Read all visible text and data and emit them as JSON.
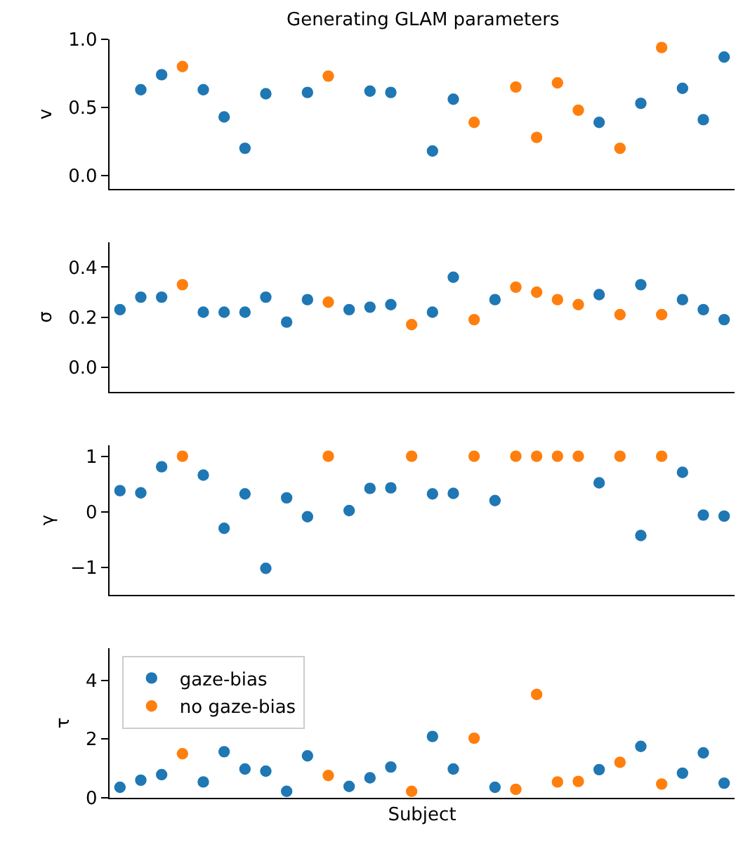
{
  "chart_data": [
    {
      "type": "scatter",
      "title": "Generating GLAM parameters",
      "ylabel": "v",
      "categories": [
        null,
        null,
        null,
        null,
        null,
        null,
        null,
        null,
        null,
        null,
        null,
        null,
        null,
        null,
        null,
        null,
        null,
        null,
        null,
        null,
        null,
        null,
        null,
        null,
        null,
        null,
        null,
        null,
        null,
        null
      ],
      "ylim": [
        -0.1,
        1.0
      ],
      "yticks": [
        {
          "value": 0,
          "label": "0.0"
        },
        {
          "value": 0.5,
          "label": "0.5"
        },
        {
          "value": 1,
          "label": "1.0"
        }
      ],
      "tick_labels": "y",
      "marker": "circle",
      "series": [
        {
          "color": "#1f77b4",
          "values": [
            null,
            0.63,
            0.74,
            null,
            0.63,
            0.43,
            0.2,
            0.6,
            null,
            0.61,
            null,
            null,
            0.62,
            0.61,
            null,
            0.18,
            0.56,
            null,
            null,
            null,
            null,
            null,
            null,
            0.39,
            null,
            0.53,
            null,
            0.64,
            0.41,
            0.87
          ]
        },
        {
          "color": "#ff7f0e",
          "values": [
            null,
            null,
            null,
            0.8,
            null,
            null,
            null,
            null,
            null,
            null,
            0.73,
            null,
            null,
            null,
            null,
            null,
            null,
            0.39,
            null,
            0.65,
            0.28,
            0.68,
            0.48,
            null,
            0.2,
            null,
            0.94,
            null,
            null,
            null
          ]
        }
      ]
    },
    {
      "type": "scatter",
      "ylabel": "σ",
      "categories": [
        null,
        null,
        null,
        null,
        null,
        null,
        null,
        null,
        null,
        null,
        null,
        null,
        null,
        null,
        null,
        null,
        null,
        null,
        null,
        null,
        null,
        null,
        null,
        null,
        null,
        null,
        null,
        null,
        null,
        null
      ],
      "ylim": [
        -0.1,
        0.5
      ],
      "yticks": [
        {
          "value": 0,
          "label": "0.0"
        },
        {
          "value": 0.2,
          "label": "0.2"
        },
        {
          "value": 0.4,
          "label": "0.4"
        }
      ],
      "tick_labels": "y",
      "marker": "circle",
      "series": [
        {
          "color": "#1f77b4",
          "values": [
            0.23,
            0.28,
            0.28,
            null,
            0.22,
            0.22,
            0.22,
            0.28,
            0.18,
            0.27,
            null,
            0.23,
            0.24,
            0.25,
            null,
            0.22,
            0.36,
            null,
            0.27,
            null,
            null,
            null,
            null,
            0.29,
            null,
            0.33,
            null,
            0.27,
            0.23,
            0.19
          ]
        },
        {
          "color": "#ff7f0e",
          "values": [
            null,
            null,
            null,
            0.33,
            null,
            null,
            null,
            null,
            null,
            null,
            0.26,
            null,
            null,
            null,
            0.17,
            null,
            null,
            0.19,
            null,
            0.32,
            0.3,
            0.27,
            0.25,
            null,
            0.21,
            null,
            0.21,
            null,
            null,
            null
          ]
        }
      ]
    },
    {
      "type": "scatter",
      "ylabel": "γ",
      "categories": [
        null,
        null,
        null,
        null,
        null,
        null,
        null,
        null,
        null,
        null,
        null,
        null,
        null,
        null,
        null,
        null,
        null,
        null,
        null,
        null,
        null,
        null,
        null,
        null,
        null,
        null,
        null,
        null,
        null,
        null
      ],
      "ylim": [
        -1.5,
        1.2
      ],
      "yticks": [
        {
          "value": -1,
          "label": "−1"
        },
        0,
        1
      ],
      "tick_labels": "y",
      "marker": "circle",
      "series": [
        {
          "color": "#1f77b4",
          "values": [
            0.38,
            0.34,
            0.81,
            null,
            0.66,
            -0.3,
            0.32,
            -1.02,
            0.25,
            -0.09,
            null,
            0.02,
            0.42,
            0.43,
            null,
            0.32,
            0.33,
            null,
            0.2,
            null,
            null,
            null,
            null,
            0.52,
            null,
            -0.43,
            null,
            0.71,
            -0.06,
            -0.08
          ]
        },
        {
          "color": "#ff7f0e",
          "values": [
            null,
            null,
            null,
            1,
            null,
            null,
            null,
            null,
            null,
            null,
            1,
            null,
            null,
            null,
            1,
            null,
            null,
            1,
            null,
            1,
            1,
            1,
            1,
            null,
            1,
            null,
            1,
            null,
            null,
            null
          ]
        }
      ]
    },
    {
      "type": "scatter",
      "ylabel": "τ",
      "xlabel": "Subject",
      "categories": [
        null,
        null,
        null,
        null,
        null,
        null,
        null,
        null,
        null,
        null,
        null,
        null,
        null,
        null,
        null,
        null,
        null,
        null,
        null,
        null,
        null,
        null,
        null,
        null,
        null,
        null,
        null,
        null,
        null,
        null
      ],
      "ylim": [
        0,
        5.1
      ],
      "yticks": [
        0,
        2,
        4
      ],
      "tick_labels": "y",
      "marker": "circle",
      "legend": "top left",
      "series": [
        {
          "name": "gaze-bias",
          "color": "#1f77b4",
          "values": [
            0.36,
            0.6,
            0.79,
            null,
            0.54,
            1.57,
            0.98,
            0.91,
            0.22,
            1.43,
            null,
            0.39,
            0.68,
            1.05,
            null,
            2.09,
            0.98,
            null,
            0.36,
            null,
            null,
            null,
            null,
            0.96,
            null,
            1.75,
            null,
            0.84,
            1.53,
            0.5
          ]
        },
        {
          "name": "no gaze-bias",
          "color": "#ff7f0e",
          "values": [
            null,
            null,
            null,
            1.5,
            null,
            null,
            null,
            null,
            null,
            null,
            0.76,
            null,
            null,
            null,
            0.22,
            null,
            null,
            2.03,
            null,
            0.29,
            3.52,
            0.54,
            0.56,
            null,
            1.21,
            null,
            0.47,
            null,
            null,
            null
          ]
        }
      ]
    }
  ]
}
